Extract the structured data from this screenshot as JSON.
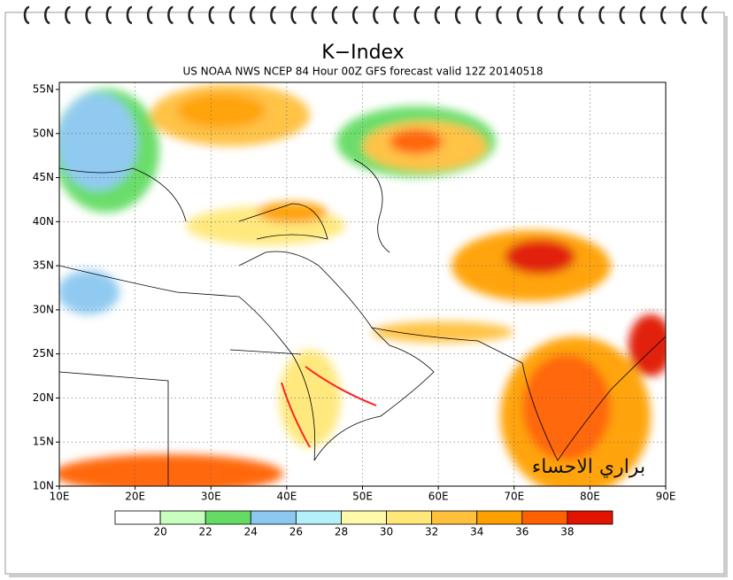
{
  "map": {
    "title": "K−Index",
    "subtitle": "US NOAA NWS NCEP 84 Hour 00Z GFS forecast valid 12Z 20140518",
    "lat_labels": [
      "55N",
      "50N",
      "45N",
      "40N",
      "35N",
      "30N",
      "25N",
      "20N",
      "15N",
      "10N"
    ],
    "lon_labels": [
      "10E",
      "20E",
      "30E",
      "40E",
      "50E",
      "60E",
      "70E",
      "80E",
      "90E"
    ],
    "watermark": "براري الاحساء"
  },
  "colorbar": {
    "colors": [
      "#ffffff",
      "#c8ffbe",
      "#64dc64",
      "#8cc8f0",
      "#b4f0fa",
      "#fffaaa",
      "#ffe878",
      "#ffc03c",
      "#ffa000",
      "#ff6000",
      "#e11400"
    ],
    "labels": [
      20,
      22,
      24,
      26,
      28,
      30,
      32,
      34,
      36,
      38
    ]
  }
}
